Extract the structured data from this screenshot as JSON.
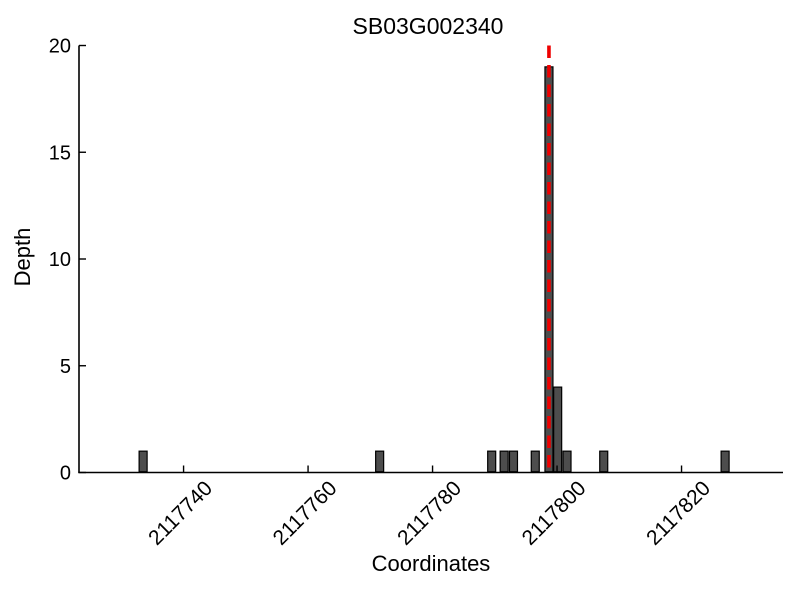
{
  "chart_data": {
    "type": "bar",
    "title": "SB03G002340",
    "xlabel": "Coordinates",
    "ylabel": "Depth",
    "xlim": [
      2117723.2,
      2117836.3
    ],
    "ylim": [
      0,
      20
    ],
    "xticks": [
      2117740,
      2117760,
      2117780,
      2117800,
      2117820
    ],
    "yticks": [
      0,
      5,
      10,
      15,
      20
    ],
    "grid": false,
    "legend": null,
    "bars": [
      {
        "x": 2117733.5,
        "depth": 1
      },
      {
        "x": 2117771.5,
        "depth": 1
      },
      {
        "x": 2117789.5,
        "depth": 1
      },
      {
        "x": 2117791.5,
        "depth": 1
      },
      {
        "x": 2117793.0,
        "depth": 1
      },
      {
        "x": 2117796.5,
        "depth": 1
      },
      {
        "x": 2117798.7,
        "depth": 19
      },
      {
        "x": 2117800.1,
        "depth": 4
      },
      {
        "x": 2117801.6,
        "depth": 1
      },
      {
        "x": 2117807.5,
        "depth": 1
      },
      {
        "x": 2117827.0,
        "depth": 1
      }
    ],
    "vline": {
      "x": 2117798.7,
      "y0": 0,
      "y1": 20,
      "style": "dashed"
    },
    "colors": {
      "bar_fill": "#4d4d4d",
      "bar_stroke": "#000000",
      "vline": "#ee0000",
      "axis": "#000000",
      "text": "#000000"
    }
  }
}
